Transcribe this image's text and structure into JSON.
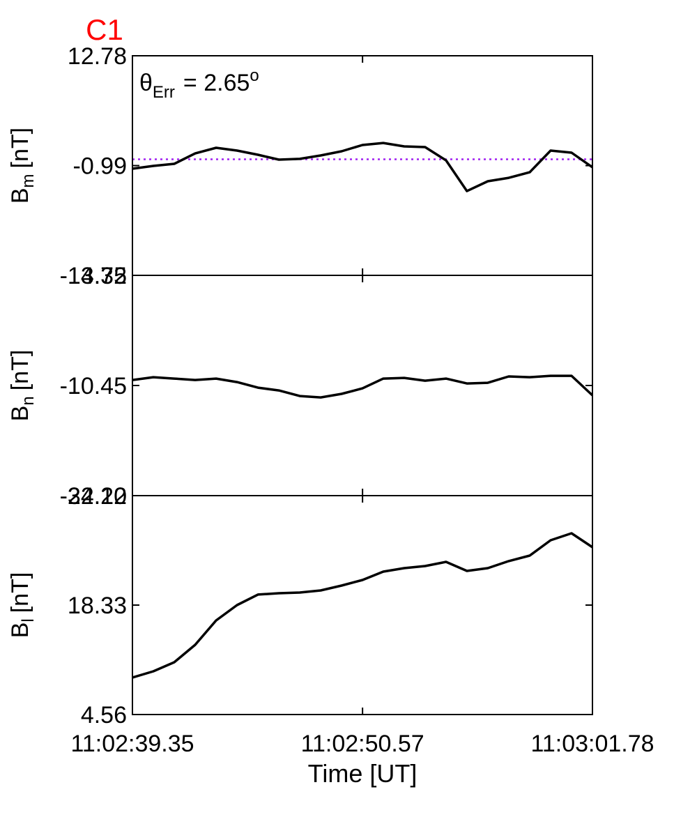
{
  "chart_data": {
    "type": "line",
    "title": "C1",
    "title_color": "#ff0000",
    "xlabel": "Time [UT]",
    "x": [
      "11:02:39.35",
      "11:02:40.37",
      "11:02:41.39",
      "11:02:42.41",
      "11:02:43.43",
      "11:02:44.45",
      "11:02:45.47",
      "11:02:46.49",
      "11:02:47.51",
      "11:02:48.53",
      "11:02:49.55",
      "11:02:50.57",
      "11:02:51.58",
      "11:02:52.60",
      "11:02:53.62",
      "11:02:54.64",
      "11:02:55.66",
      "11:02:56.68",
      "11:02:57.70",
      "11:02:58.72",
      "11:02:59.74",
      "11:03:00.76",
      "11:03:01.78"
    ],
    "xlim": [
      "11:02:39.35",
      "11:03:01.78"
    ],
    "xticks": [
      "11:02:39.35",
      "11:02:50.57",
      "11:03:01.78"
    ],
    "annotation": {
      "symbol": "θ",
      "subscript": "Err",
      "text": "=  2.65",
      "superscript": "o"
    },
    "panels": [
      {
        "ylabel": {
          "text": "B",
          "subscript": "m",
          "unit": "[nT]"
        },
        "ylim": [
          -14.75,
          12.78
        ],
        "yticks": [
          -14.75,
          -0.99,
          12.78
        ],
        "reference_line": {
          "value": -0.2,
          "color": "#a020f0",
          "style": "dotted"
        },
        "series": [
          {
            "color": "#000000",
            "values": [
              -1.38,
              -1.03,
              -0.77,
              0.54,
              1.24,
              0.89,
              0.37,
              -0.24,
              -0.15,
              0.28,
              0.81,
              1.59,
              1.85,
              1.42,
              1.33,
              -0.33,
              -4.18,
              -2.95,
              -2.52,
              -1.82,
              0.89,
              0.63,
              -1.2
            ]
          }
        ]
      },
      {
        "ylabel": {
          "text": "B",
          "subscript": "n",
          "unit": "[nT]"
        },
        "ylim": [
          -24.22,
          3.32
        ],
        "yticks": [
          -24.22,
          -10.45,
          3.32
        ],
        "series": [
          {
            "color": "#000000",
            "values": [
              -9.76,
              -9.41,
              -9.59,
              -9.76,
              -9.59,
              -10.02,
              -10.72,
              -11.07,
              -11.77,
              -11.94,
              -11.5,
              -10.81,
              -9.59,
              -9.5,
              -9.85,
              -9.59,
              -10.2,
              -10.11,
              -9.32,
              -9.41,
              -9.24,
              -9.24,
              -11.68
            ]
          }
        ]
      },
      {
        "ylabel": {
          "text": "B",
          "subscript": "l",
          "unit": "[nT]"
        },
        "ylim": [
          4.56,
          32.1
        ],
        "yticks": [
          4.56,
          18.33,
          {
            "value": 32.1,
            "label": "32.10"
          }
        ],
        "series": [
          {
            "color": "#000000",
            "values": [
              9.21,
              10.0,
              11.14,
              13.33,
              16.4,
              18.33,
              19.65,
              19.82,
              19.91,
              20.17,
              20.79,
              21.49,
              22.54,
              22.98,
              23.24,
              23.77,
              22.63,
              22.98,
              23.86,
              24.56,
              26.49,
              27.36,
              25.61
            ]
          }
        ]
      }
    ]
  }
}
